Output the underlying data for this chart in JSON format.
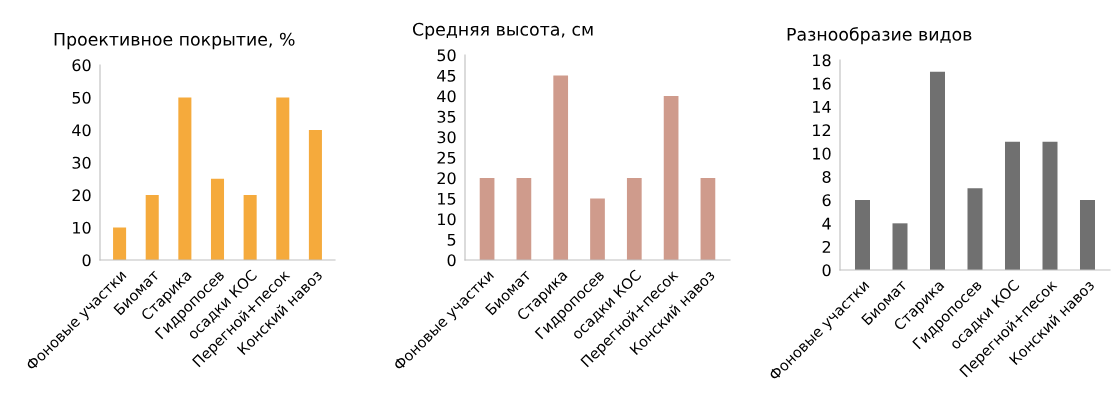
{
  "chart_data": [
    {
      "type": "bar",
      "title": "Проективное покрытие, %",
      "categories": [
        "Фоновые участки",
        "Биомат",
        "Старика",
        "Гидропосев",
        "осадки КОС",
        "Перегной+песок",
        "Конский навоз"
      ],
      "values": [
        10,
        20,
        50,
        25,
        20,
        50,
        40
      ],
      "color": "#f5aa3c",
      "ylim": [
        0,
        60
      ],
      "yticks": [
        0,
        10,
        20,
        30,
        40,
        50,
        60
      ],
      "grid": false
    },
    {
      "type": "bar",
      "title": "Средняя высота, см",
      "categories": [
        "Фоновые участки",
        "Биомат",
        "Старика",
        "Гидропосев",
        "осадки КОС",
        "Перегной+песок",
        "Конский навоз"
      ],
      "values": [
        20,
        20,
        45,
        15,
        20,
        40,
        20
      ],
      "color": "#cf9b8c",
      "ylim": [
        0,
        50
      ],
      "yticks": [
        0,
        5,
        10,
        15,
        20,
        25,
        30,
        35,
        40,
        45,
        50
      ],
      "grid": false
    },
    {
      "type": "bar",
      "title": "Разнообразие видов",
      "categories": [
        "Фоновые участки",
        "Биомат",
        "Старика",
        "Гидропосев",
        "осадки КОС",
        "Перегной+песок",
        "Конский навоз"
      ],
      "values": [
        6,
        4,
        17,
        7,
        11,
        11,
        6
      ],
      "color": "#707070",
      "ylim": [
        0,
        18
      ],
      "yticks": [
        0,
        2,
        4,
        6,
        8,
        10,
        12,
        14,
        16,
        18
      ],
      "grid": false
    }
  ]
}
